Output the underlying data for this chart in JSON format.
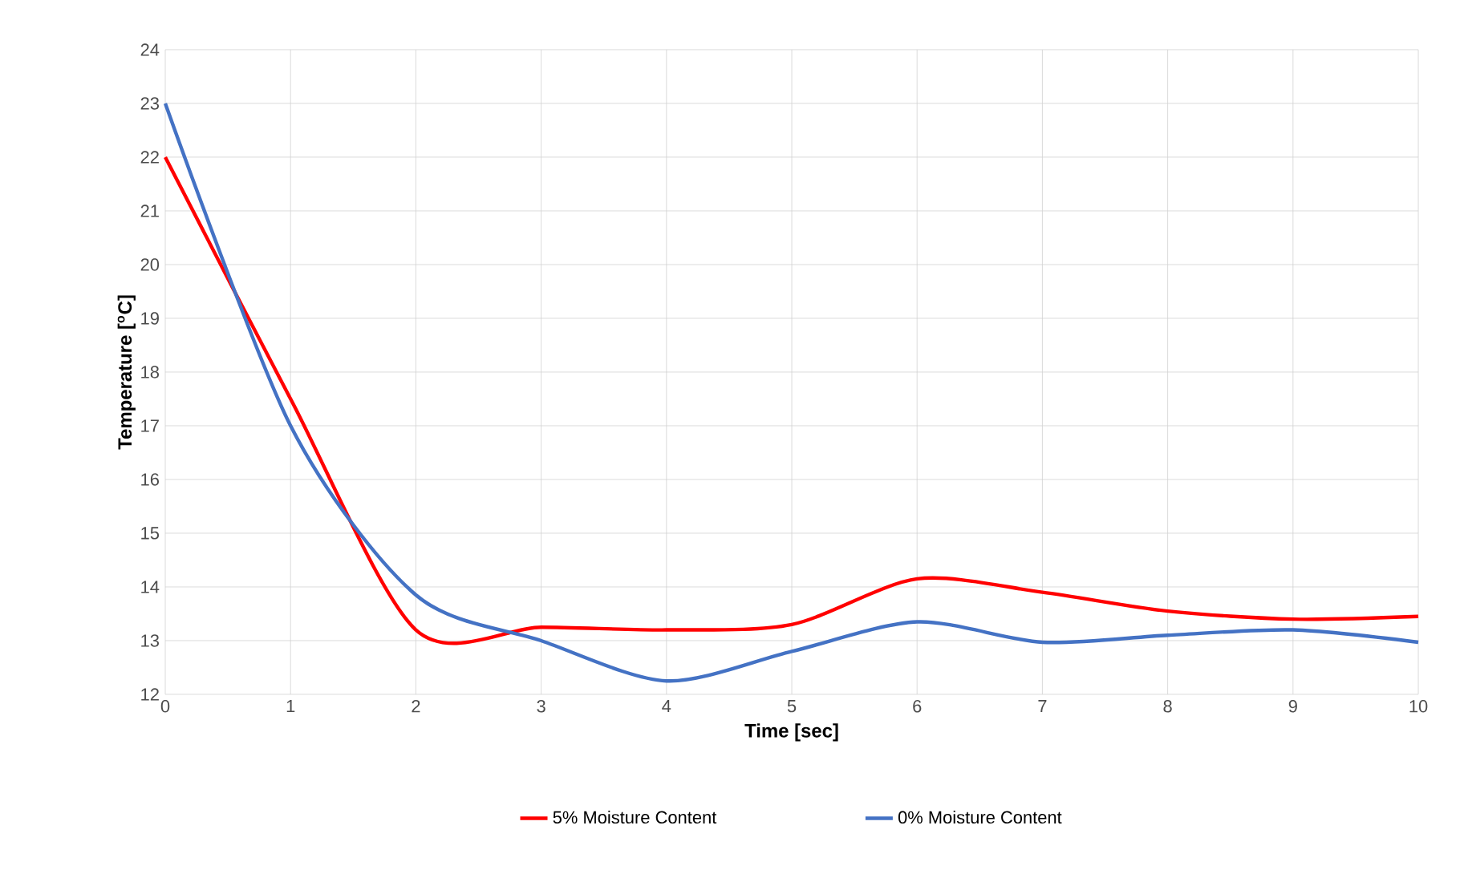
{
  "chart_data": {
    "type": "line",
    "xlabel": "Time [sec]",
    "ylabel": "Temperature [$^{o}$C]",
    "x": [
      0,
      1,
      2,
      3,
      4,
      5,
      6,
      7,
      8,
      9,
      10
    ],
    "series": [
      {
        "name": "5% Moisture Content",
        "color": "#ff0000",
        "values": [
          22,
          17.5,
          13.2,
          13.25,
          13.2,
          13.3,
          14.15,
          13.9,
          13.55,
          13.4,
          13.45
        ]
      },
      {
        "name": "0% Moisture Content",
        "color": "#4472c4",
        "values": [
          23,
          17.0,
          13.85,
          13.0,
          12.25,
          12.8,
          13.35,
          12.97,
          13.1,
          13.2,
          12.97
        ]
      }
    ],
    "xlim": [
      0,
      10
    ],
    "ylim": [
      12,
      24
    ],
    "xticks": [
      0,
      1,
      2,
      3,
      4,
      5,
      6,
      7,
      8,
      9,
      10
    ],
    "yticks": [
      12,
      13,
      14,
      15,
      16,
      17,
      18,
      19,
      20,
      21,
      22,
      23,
      24
    ],
    "grid": true,
    "legend": "bottom",
    "marker": "none",
    "line_style": "solid"
  }
}
